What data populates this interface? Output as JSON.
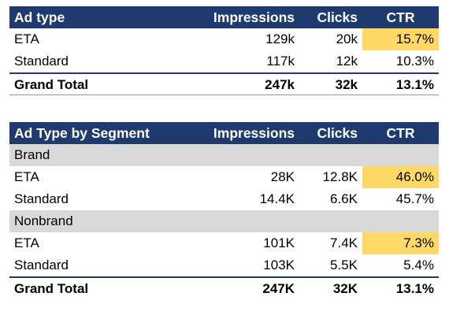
{
  "table1": {
    "headers": [
      "Ad type",
      "Impressions",
      "Clicks",
      "CTR"
    ],
    "rows": [
      {
        "label": "ETA",
        "impressions": "129k",
        "clicks": "20k",
        "ctr": "15.7%",
        "highlight": true
      },
      {
        "label": "Standard",
        "impressions": "117k",
        "clicks": "12k",
        "ctr": "10.3%",
        "highlight": false
      }
    ],
    "total": {
      "label": "Grand Total",
      "impressions": "247k",
      "clicks": "32k",
      "ctr": "13.1%"
    }
  },
  "table2": {
    "headers": [
      "Ad Type by Segment",
      "Impressions",
      "Clicks",
      "CTR"
    ],
    "segments": [
      {
        "name": "Brand",
        "rows": [
          {
            "label": "ETA",
            "impressions": "28K",
            "clicks": "12.8K",
            "ctr": "46.0%",
            "highlight": true
          },
          {
            "label": "Standard",
            "impressions": "14.4K",
            "clicks": "6.6K",
            "ctr": "45.7%",
            "highlight": false
          }
        ]
      },
      {
        "name": "Nonbrand",
        "rows": [
          {
            "label": "ETA",
            "impressions": "101K",
            "clicks": "7.4K",
            "ctr": "7.3%",
            "highlight": true
          },
          {
            "label": "Standard",
            "impressions": "103K",
            "clicks": "5.5K",
            "ctr": "5.4%",
            "highlight": false
          }
        ]
      }
    ],
    "total": {
      "label": "Grand Total",
      "impressions": "247K",
      "clicks": "32K",
      "ctr": "13.1%"
    }
  },
  "colors": {
    "header_bg": "#1f3a6e",
    "header_text": "#ffffff",
    "highlight": "#ffd966",
    "segment_bg": "#d9d9d9"
  }
}
